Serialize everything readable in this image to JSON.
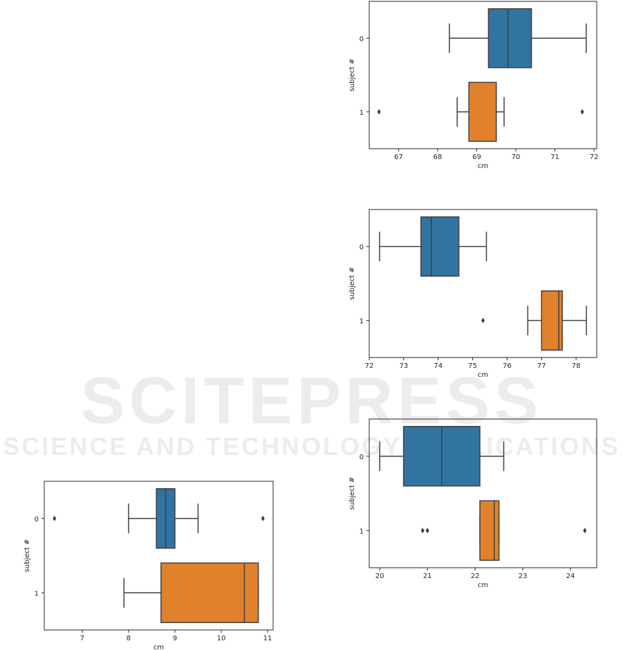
{
  "watermark": {
    "line1": "SCITEPRESS",
    "line2": "SCIENCE AND TECHNOLOGY PUBLICATIONS"
  },
  "colors": {
    "subject_0": "#3274a1",
    "subject_1": "#e1812c",
    "lines": "#3f3f3f"
  },
  "chart_data": [
    {
      "type": "box",
      "orientation": "horizontal",
      "xlabel": "cm",
      "ylabel": "subject #",
      "categories": [
        "0",
        "1"
      ],
      "xlim": [
        66.25,
        72.07
      ],
      "xticks": [
        67,
        68,
        69,
        70,
        71,
        72
      ],
      "boxes": [
        {
          "category": "0",
          "whisker_low": 68.3,
          "q1": 69.3,
          "median": 69.8,
          "q3": 70.4,
          "whisker_high": 71.8,
          "outliers": []
        },
        {
          "category": "1",
          "whisker_low": 68.5,
          "q1": 68.8,
          "median": 69.5,
          "q3": 69.5,
          "whisker_high": 69.7,
          "outliers": [
            66.5,
            71.7
          ]
        }
      ]
    },
    {
      "type": "box",
      "orientation": "horizontal",
      "xlabel": "cm",
      "ylabel": "subject #",
      "categories": [
        "0",
        "1"
      ],
      "xlim": [
        72.0,
        78.6
      ],
      "xticks": [
        72,
        73,
        74,
        75,
        76,
        77,
        78
      ],
      "boxes": [
        {
          "category": "0",
          "whisker_low": 72.3,
          "q1": 73.5,
          "median": 73.8,
          "q3": 74.6,
          "whisker_high": 75.4,
          "outliers": []
        },
        {
          "category": "1",
          "whisker_low": 76.6,
          "q1": 77.0,
          "median": 77.5,
          "q3": 77.6,
          "whisker_high": 78.3,
          "outliers": [
            75.3
          ]
        }
      ]
    },
    {
      "type": "box",
      "orientation": "horizontal",
      "xlabel": "cm",
      "ylabel": "subject #",
      "categories": [
        "0",
        "1"
      ],
      "xlim": [
        19.78,
        24.55
      ],
      "xticks": [
        20,
        21,
        22,
        23,
        24
      ],
      "boxes": [
        {
          "category": "0",
          "whisker_low": 20.0,
          "q1": 20.5,
          "median": 21.3,
          "q3": 22.1,
          "whisker_high": 22.6,
          "outliers": []
        },
        {
          "category": "1",
          "whisker_low": 22.1,
          "q1": 22.1,
          "median": 22.4,
          "q3": 22.5,
          "whisker_high": 22.5,
          "outliers": [
            20.9,
            21.0,
            24.3
          ]
        }
      ]
    },
    {
      "type": "box",
      "orientation": "horizontal",
      "xlabel": "cm",
      "ylabel": "subject #",
      "categories": [
        "0",
        "1"
      ],
      "xlim": [
        6.18,
        11.12
      ],
      "xticks": [
        7,
        8,
        9,
        10,
        11
      ],
      "boxes": [
        {
          "category": "0",
          "whisker_low": 8.0,
          "q1": 8.6,
          "median": 8.8,
          "q3": 9.0,
          "whisker_high": 9.5,
          "outliers": [
            6.4,
            10.9
          ]
        },
        {
          "category": "1",
          "whisker_low": 7.9,
          "q1": 8.7,
          "median": 10.5,
          "q3": 10.8,
          "whisker_high": 10.8,
          "outliers": []
        }
      ]
    }
  ]
}
